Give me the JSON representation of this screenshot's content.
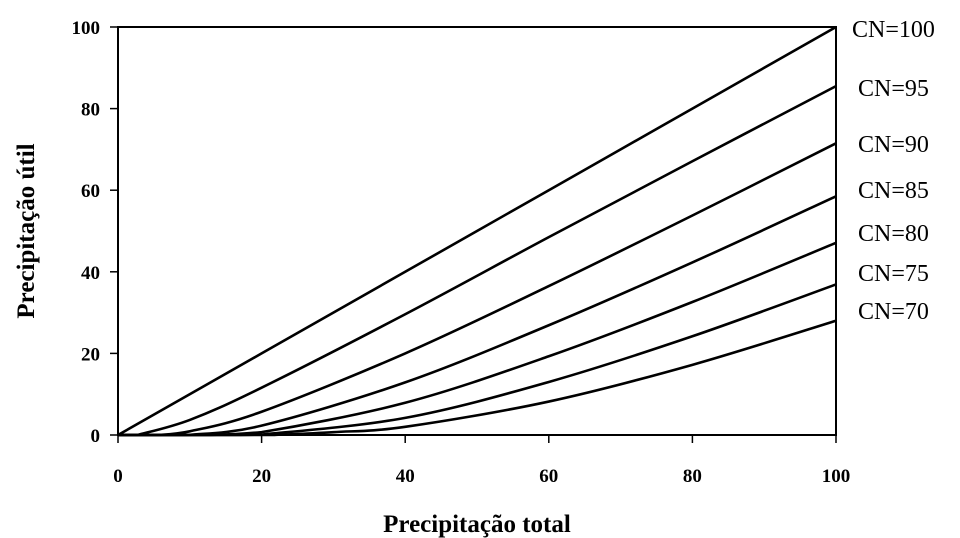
{
  "chart_data": {
    "type": "line",
    "xlabel": "Precipitação total",
    "ylabel": "Precipitação útil",
    "xlim": [
      0,
      100
    ],
    "ylim": [
      0,
      100
    ],
    "x_ticks": [
      0,
      20,
      40,
      60,
      80,
      100
    ],
    "y_ticks": [
      0,
      20,
      40,
      60,
      80,
      100
    ],
    "grid": false,
    "series": [
      {
        "name": "CN=100",
        "x": [
          0,
          20,
          40,
          60,
          80,
          100
        ],
        "values": [
          0,
          20,
          40,
          60,
          80,
          100
        ]
      },
      {
        "name": "CN=95",
        "x": [
          2.7,
          10,
          20,
          40,
          60,
          80,
          100
        ],
        "values": [
          0,
          3.7,
          11.6,
          29.6,
          48.5,
          67.1,
          85.5
        ]
      },
      {
        "name": "CN=90",
        "x": [
          5.6,
          10,
          20,
          40,
          60,
          80,
          100
        ],
        "values": [
          0,
          0.9,
          5.7,
          20.0,
          36.5,
          53.8,
          71.5
        ]
      },
      {
        "name": "CN=85",
        "x": [
          9.0,
          10,
          20,
          40,
          60,
          80,
          100
        ],
        "values": [
          0,
          0.03,
          2.3,
          12.9,
          26.9,
          42.3,
          58.5
        ]
      },
      {
        "name": "CN=80",
        "x": [
          12.7,
          20,
          40,
          60,
          80,
          100
        ],
        "values": [
          0,
          0.7,
          7.9,
          19.3,
          32.6,
          47.1
        ]
      },
      {
        "name": "CN=75",
        "x": [
          16.9,
          20,
          40,
          60,
          80,
          100
        ],
        "values": [
          0,
          0.1,
          4.2,
          13.0,
          24.2,
          36.9
        ]
      },
      {
        "name": "CN=70",
        "x": [
          21.8,
          30,
          40,
          60,
          80,
          100
        ],
        "values": [
          0,
          0.7,
          2.0,
          8.2,
          17.2,
          28.0
        ]
      }
    ]
  }
}
